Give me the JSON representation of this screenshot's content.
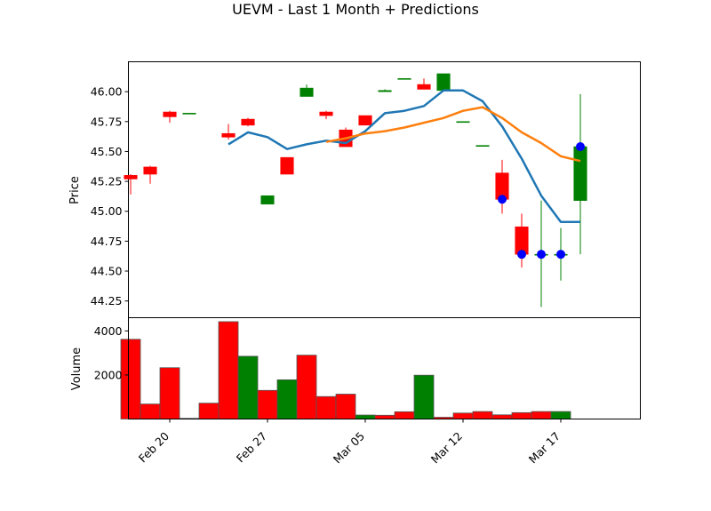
{
  "chart_data": {
    "type": "candlestick",
    "title": "UEVM - Last 1 Month + Predictions",
    "dates": [
      "2024-02-20",
      "2024-02-21",
      "2024-02-22",
      "2024-02-23",
      "2024-02-26",
      "2024-02-27",
      "2024-02-28",
      "2024-02-29",
      "2024-03-01",
      "2024-03-04",
      "2024-03-05",
      "2024-03-06",
      "2024-03-07",
      "2024-03-08",
      "2024-03-11",
      "2024-03-12",
      "2024-03-13",
      "2024-03-14",
      "2024-03-15",
      "2024-03-18",
      "2024-03-19"
    ],
    "x_ticks": [
      "Feb 20",
      "Feb 27",
      "Mar 05",
      "Mar 12",
      "Mar 17"
    ],
    "price": {
      "ylabel": "Price",
      "ylim": [
        44.11,
        46.25
      ],
      "yticks": [
        "44.25",
        "44.50",
        "44.75",
        "45.00",
        "45.25",
        "45.50",
        "45.75",
        "46.00"
      ],
      "candles": [
        {
          "date": "2024-02-18",
          "open": 45.3,
          "high": 45.31,
          "low": 45.14,
          "close": 45.27
        },
        {
          "date": "2024-02-19",
          "open": 45.37,
          "high": 45.38,
          "low": 45.23,
          "close": 45.31
        },
        {
          "date": "2024-02-20",
          "open": 45.83,
          "high": 45.84,
          "low": 45.74,
          "close": 45.79
        },
        {
          "date": "2024-02-21",
          "open": 45.82,
          "high": 45.82,
          "low": 45.82,
          "close": 45.82
        },
        {
          "date": "2024-02-23",
          "open": 45.65,
          "high": 45.73,
          "low": 45.6,
          "close": 45.62
        },
        {
          "date": "2024-02-24",
          "open": 45.77,
          "high": 45.78,
          "low": 45.71,
          "close": 45.72
        },
        {
          "date": "2024-02-25",
          "open": 45.06,
          "high": 45.13,
          "low": 45.06,
          "close": 45.13
        },
        {
          "date": "2024-02-26",
          "open": 45.45,
          "high": 45.45,
          "low": 45.31,
          "close": 45.31
        },
        {
          "date": "2024-02-27",
          "open": 45.96,
          "high": 46.06,
          "low": 45.96,
          "close": 46.03
        },
        {
          "date": "2024-02-28",
          "open": 45.83,
          "high": 45.84,
          "low": 45.77,
          "close": 45.8
        },
        {
          "date": "2024-02-29",
          "open": 45.68,
          "high": 45.7,
          "low": 45.54,
          "close": 45.54
        },
        {
          "date": "2024-03-01",
          "open": 45.8,
          "high": 45.8,
          "low": 45.72,
          "close": 45.72
        },
        {
          "date": "2024-03-02",
          "open": 46.0,
          "high": 46.02,
          "low": 46.0,
          "close": 46.01
        },
        {
          "date": "2024-03-03",
          "open": 46.11,
          "high": 46.11,
          "low": 46.11,
          "close": 46.11
        },
        {
          "date": "2024-03-04",
          "open": 46.06,
          "high": 46.11,
          "low": 46.02,
          "close": 46.02
        },
        {
          "date": "2024-03-05",
          "open": 46.01,
          "high": 46.15,
          "low": 46.01,
          "close": 46.15
        },
        {
          "date": "2024-03-06",
          "open": 45.75,
          "high": 45.75,
          "low": 45.75,
          "close": 45.75
        },
        {
          "date": "2024-03-07",
          "open": 45.55,
          "high": 45.55,
          "low": 45.55,
          "close": 45.55
        },
        {
          "date": "2024-03-08",
          "open": 45.32,
          "high": 45.43,
          "low": 44.98,
          "close": 45.1
        },
        {
          "date": "2024-03-09",
          "open": 44.87,
          "high": 44.98,
          "low": 44.53,
          "close": 44.64
        },
        {
          "date": "2024-03-10",
          "open": 44.64,
          "high": 45.09,
          "low": 44.2,
          "close": 44.64
        },
        {
          "date": "2024-03-11",
          "open": 44.64,
          "high": 44.86,
          "low": 44.42,
          "close": 44.64
        },
        {
          "date": "2024-03-12",
          "open": 45.09,
          "high": 45.98,
          "low": 44.64,
          "close": 45.54
        }
      ],
      "ma_blue": [
        {
          "date": "2024-02-23",
          "value": 45.56
        },
        {
          "date": "2024-02-24",
          "value": 45.66
        },
        {
          "date": "2024-02-25",
          "value": 45.62
        },
        {
          "date": "2024-02-26",
          "value": 45.52
        },
        {
          "date": "2024-02-27",
          "value": 45.56
        },
        {
          "date": "2024-02-28",
          "value": 45.59
        },
        {
          "date": "2024-02-29",
          "value": 45.57
        },
        {
          "date": "2024-03-01",
          "value": 45.67
        },
        {
          "date": "2024-03-02",
          "value": 45.82
        },
        {
          "date": "2024-03-03",
          "value": 45.84
        },
        {
          "date": "2024-03-04",
          "value": 45.88
        },
        {
          "date": "2024-03-05",
          "value": 46.01
        },
        {
          "date": "2024-03-06",
          "value": 46.01
        },
        {
          "date": "2024-03-07",
          "value": 45.92
        },
        {
          "date": "2024-03-08",
          "value": 45.71
        },
        {
          "date": "2024-03-09",
          "value": 45.44
        },
        {
          "date": "2024-03-10",
          "value": 45.13
        },
        {
          "date": "2024-03-11",
          "value": 44.91
        },
        {
          "date": "2024-03-12",
          "value": 44.91
        }
      ],
      "ma_orange": [
        {
          "date": "2024-02-28",
          "value": 45.58
        },
        {
          "date": "2024-02-29",
          "value": 45.61
        },
        {
          "date": "2024-03-01",
          "value": 45.65
        },
        {
          "date": "2024-03-02",
          "value": 45.67
        },
        {
          "date": "2024-03-03",
          "value": 45.7
        },
        {
          "date": "2024-03-04",
          "value": 45.74
        },
        {
          "date": "2024-03-05",
          "value": 45.78
        },
        {
          "date": "2024-03-06",
          "value": 45.84
        },
        {
          "date": "2024-03-07",
          "value": 45.87
        },
        {
          "date": "2024-03-08",
          "value": 45.78
        },
        {
          "date": "2024-03-09",
          "value": 45.66
        },
        {
          "date": "2024-03-10",
          "value": 45.57
        },
        {
          "date": "2024-03-11",
          "value": 45.46
        },
        {
          "date": "2024-03-12",
          "value": 45.42
        }
      ],
      "markers": [
        {
          "date": "2024-03-08",
          "value": 45.1
        },
        {
          "date": "2024-03-09",
          "value": 44.64
        },
        {
          "date": "2024-03-10",
          "value": 44.64
        },
        {
          "date": "2024-03-11",
          "value": 44.64
        },
        {
          "date": "2024-03-12",
          "value": 45.54
        }
      ]
    },
    "volume": {
      "ylabel": "Volume",
      "ylim": [
        0,
        4600
      ],
      "yticks": [
        "2000",
        "4000"
      ],
      "bars": [
        {
          "date": "2024-02-18",
          "value": 3620,
          "color": "red"
        },
        {
          "date": "2024-02-19",
          "value": 680,
          "color": "red"
        },
        {
          "date": "2024-02-20",
          "value": 2330,
          "color": "red"
        },
        {
          "date": "2024-02-21",
          "value": 30,
          "color": "red"
        },
        {
          "date": "2024-02-22",
          "value": 720,
          "color": "red"
        },
        {
          "date": "2024-02-23",
          "value": 4420,
          "color": "red"
        },
        {
          "date": "2024-02-24",
          "value": 2850,
          "color": "green"
        },
        {
          "date": "2024-02-25",
          "value": 1300,
          "color": "red"
        },
        {
          "date": "2024-02-26",
          "value": 1780,
          "color": "green"
        },
        {
          "date": "2024-02-27",
          "value": 2900,
          "color": "red"
        },
        {
          "date": "2024-02-28",
          "value": 1020,
          "color": "red"
        },
        {
          "date": "2024-02-29",
          "value": 1130,
          "color": "red"
        },
        {
          "date": "2024-03-01",
          "value": 180,
          "color": "green"
        },
        {
          "date": "2024-03-02",
          "value": 170,
          "color": "red"
        },
        {
          "date": "2024-03-03",
          "value": 330,
          "color": "red"
        },
        {
          "date": "2024-03-04",
          "value": 1990,
          "color": "green"
        },
        {
          "date": "2024-03-05",
          "value": 80,
          "color": "red"
        },
        {
          "date": "2024-03-06",
          "value": 270,
          "color": "red"
        },
        {
          "date": "2024-03-07",
          "value": 340,
          "color": "red"
        },
        {
          "date": "2024-03-08",
          "value": 190,
          "color": "red"
        },
        {
          "date": "2024-03-09",
          "value": 290,
          "color": "red"
        },
        {
          "date": "2024-03-10",
          "value": 340,
          "color": "red"
        },
        {
          "date": "2024-03-11",
          "value": 340,
          "color": "green"
        }
      ]
    },
    "colors": {
      "up": "#008000",
      "down": "#ff0000",
      "ma_blue": "#1f77b4",
      "ma_orange": "#ff7f0e",
      "marker": "#0000ff"
    }
  }
}
